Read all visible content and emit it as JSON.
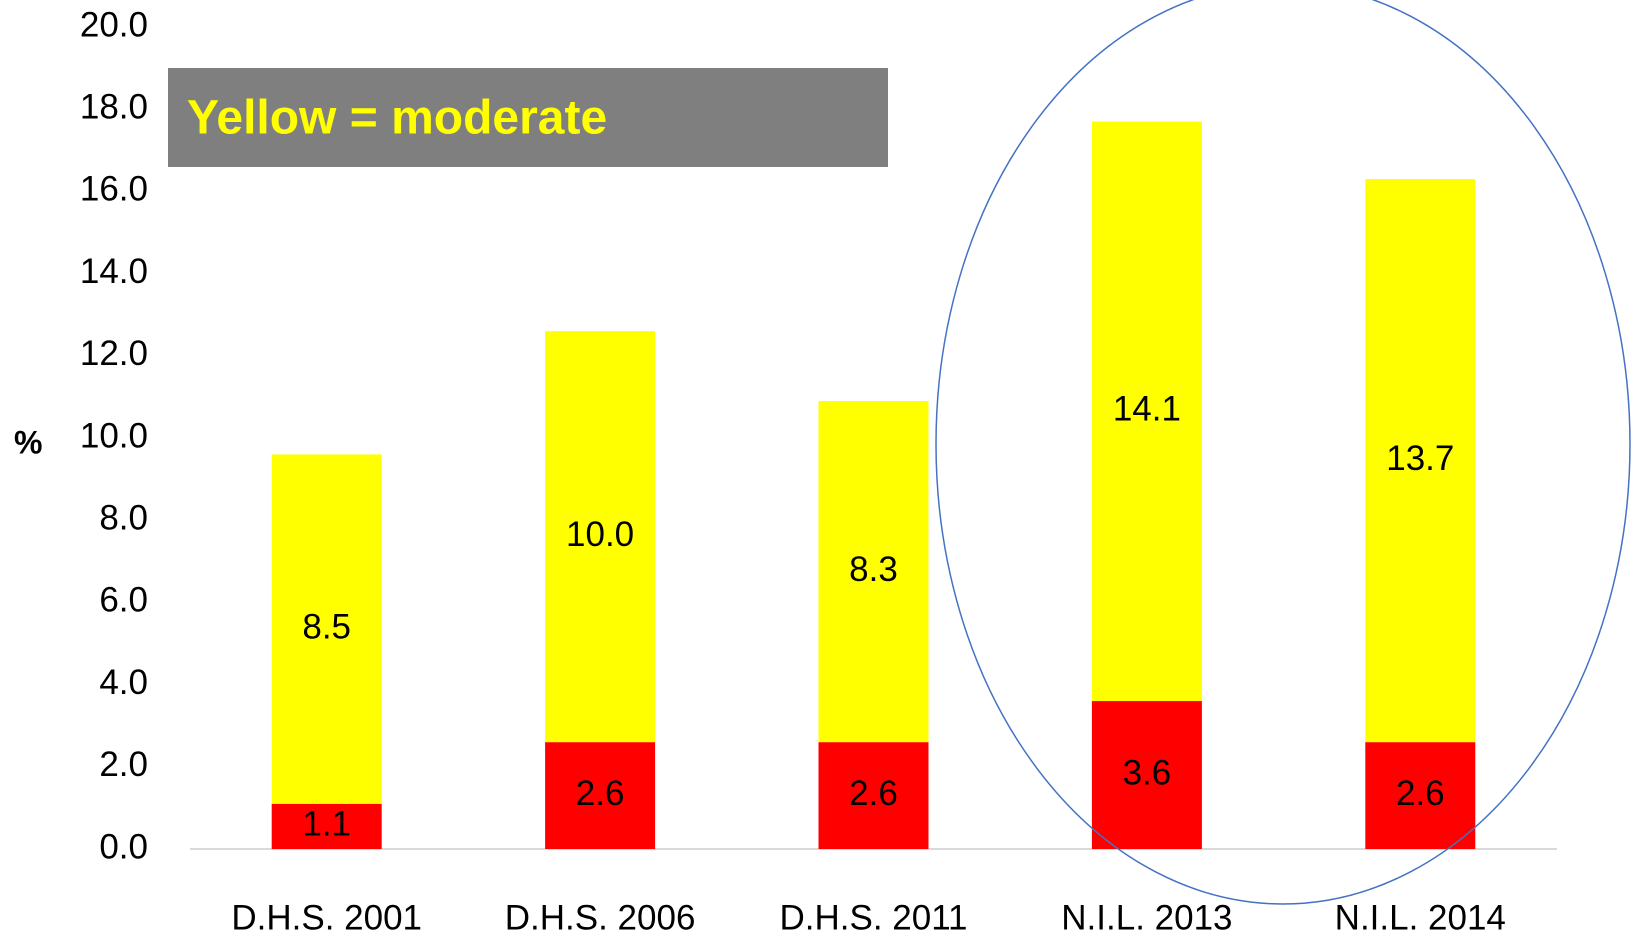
{
  "chart_data": {
    "type": "stacked_bar",
    "annotation": "Yellow = moderate",
    "y_label": "%",
    "categories": [
      "D.H.S. 2001",
      "D.H.S. 2006",
      "D.H.S. 2011",
      "N.I.L. 2013",
      "N.I.L. 2014"
    ],
    "series": [
      {
        "color": "#ff0000",
        "values": [
          1.1,
          2.6,
          2.6,
          3.6,
          2.6
        ],
        "value_labels": [
          "1.1",
          "2.6",
          "2.6",
          "3.6",
          "2.6"
        ]
      },
      {
        "color": "#ffff00",
        "values": [
          8.5,
          10.0,
          8.3,
          14.1,
          13.7
        ],
        "value_labels": [
          "8.5",
          "10.0",
          "8.3",
          "14.1",
          "13.7"
        ]
      }
    ],
    "ylim": [
      0,
      20
    ],
    "yticks": [
      {
        "value": 0,
        "label": "0.0"
      },
      {
        "value": 2,
        "label": "2.0"
      },
      {
        "value": 4,
        "label": "4.0"
      },
      {
        "value": 6,
        "label": "6.0"
      },
      {
        "value": 8,
        "label": "8.0"
      },
      {
        "value": 10,
        "label": "10.0"
      },
      {
        "value": 12,
        "label": "12.0"
      },
      {
        "value": 14,
        "label": "14.0"
      },
      {
        "value": 16,
        "label": "16.0"
      },
      {
        "value": 18,
        "label": "18.0"
      },
      {
        "value": 20,
        "label": "20.0"
      }
    ]
  }
}
